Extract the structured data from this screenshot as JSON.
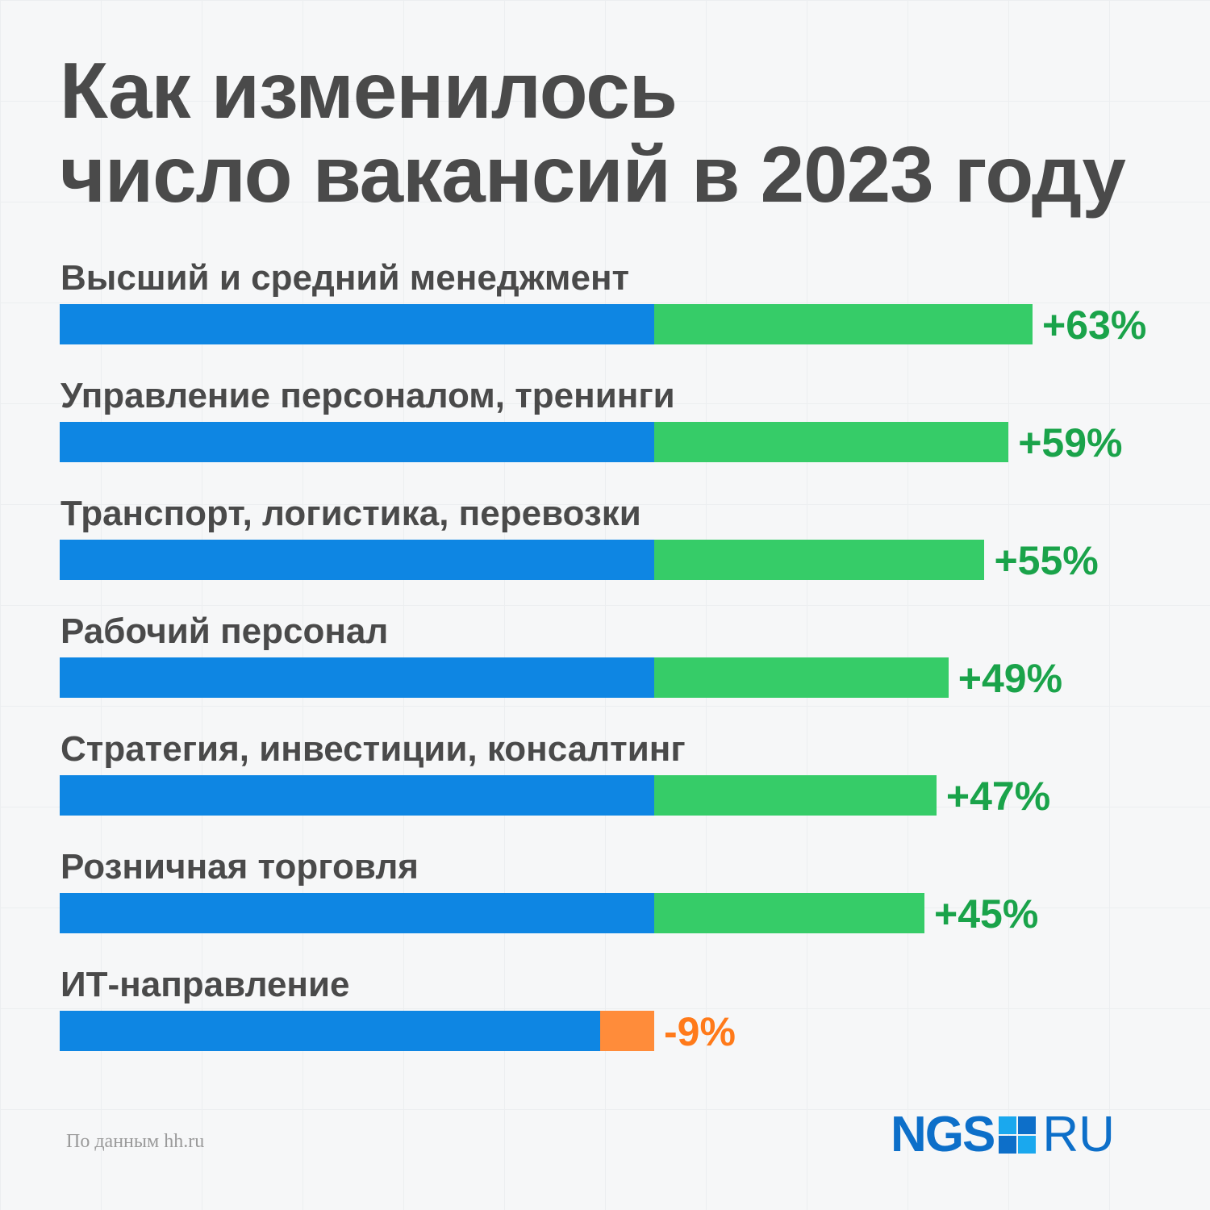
{
  "title_lines": [
    "Как изменилось",
    "число вакансий в 2023 году"
  ],
  "source": "По данным hh.ru",
  "logo": {
    "left": "NGS",
    "right": "RU"
  },
  "colors": {
    "base": "#0e86e3",
    "increase": "#36cc68",
    "decrease": "#ff8c3a",
    "increase_text": "#1aa34a",
    "decrease_text": "#ff7a1a",
    "title": "#4a4a4a",
    "logo": "#0d6fc9"
  },
  "chart_data": {
    "type": "bar",
    "orientation": "horizontal",
    "title": "Как изменилось число вакансий в 2023 году",
    "categories": [
      "Высший и средний менеджмент",
      "Управление персоналом, тренинги",
      "Транспорт, логистика, перевозки",
      "Рабочий персонал",
      "Стратегия, инвестиции, консалтинг",
      "Розничная торговля",
      "ИТ-направление"
    ],
    "series": [
      {
        "values": [
          63,
          59,
          55,
          49,
          47,
          45,
          -9
        ]
      }
    ],
    "value_labels": [
      "+63%",
      "+59%",
      "+55%",
      "+49%",
      "+47%",
      "+45%",
      "-9%"
    ],
    "unit": "%",
    "grid": false,
    "legend": "none"
  }
}
